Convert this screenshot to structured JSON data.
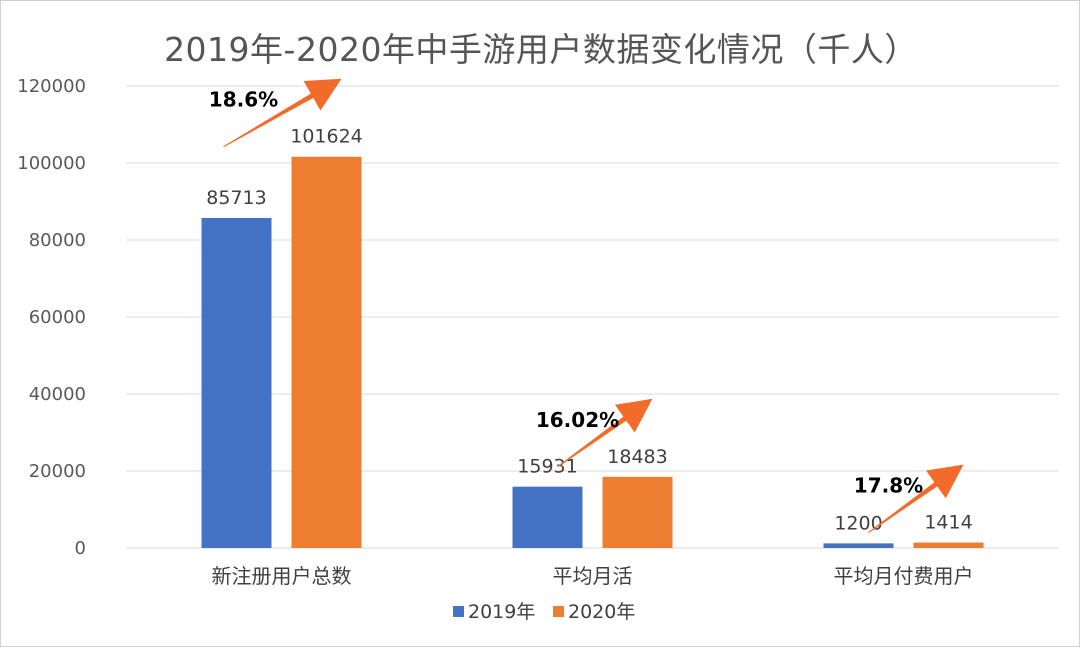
{
  "chart_data": {
    "type": "bar",
    "title": "2019年-2020年中手游用户数据变化情况（千人）",
    "categories": [
      "新注册用户总数",
      "平均月活",
      "平均月付费用户"
    ],
    "series": [
      {
        "name": "2019年",
        "values": [
          85713,
          15931,
          1200
        ],
        "color": "#4472C4"
      },
      {
        "name": "2020年",
        "values": [
          101624,
          18483,
          1414
        ],
        "color": "#ED7D31"
      }
    ],
    "data_labels": {
      "2019年": [
        "85713",
        "15931",
        "1200"
      ],
      "2020年": [
        "101624",
        "18483",
        "1414"
      ]
    },
    "ylim": [
      0,
      120000
    ],
    "yticks": [
      0,
      20000,
      40000,
      60000,
      80000,
      100000,
      120000
    ],
    "ytick_labels": [
      "0",
      "20000",
      "40000",
      "60000",
      "80000",
      "100000",
      "120000"
    ],
    "grid": true,
    "legend_position": "bottom",
    "annotations": [
      {
        "category": "新注册用户总数",
        "text": "18.6%",
        "arrow_color": "#F26B2A"
      },
      {
        "category": "平均月活",
        "text": "16.02%",
        "arrow_color": "#F26B2A"
      },
      {
        "category": "平均月付费用户",
        "text": "17.8%",
        "arrow_color": "#F26B2A"
      }
    ],
    "xlabel": "",
    "ylabel": ""
  }
}
